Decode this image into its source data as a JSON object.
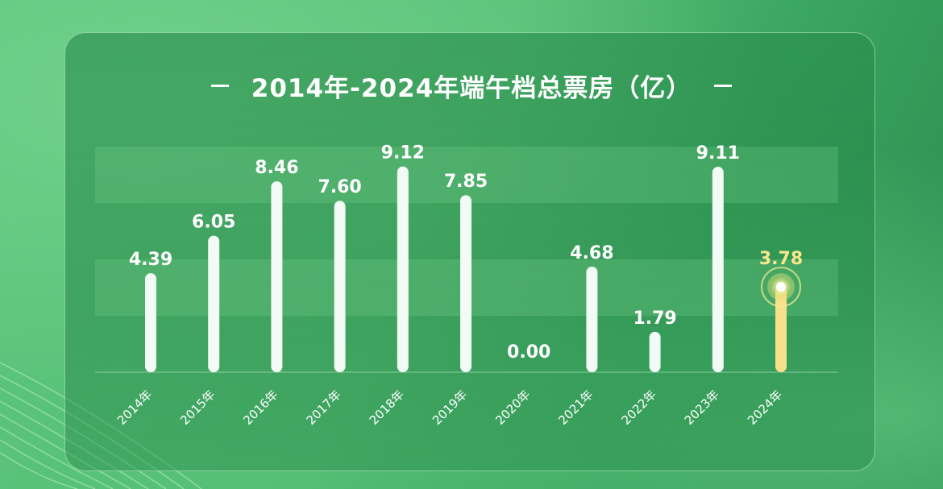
{
  "chart_data": {
    "type": "bar",
    "title": "2014年-2024年端午档总票房（亿）",
    "categories": [
      "2014年",
      "2015年",
      "2016年",
      "2017年",
      "2018年",
      "2019年",
      "2020年",
      "2021年",
      "2022年",
      "2023年",
      "2024年"
    ],
    "values": [
      4.39,
      6.05,
      8.46,
      7.6,
      9.12,
      7.85,
      0.0,
      4.68,
      1.79,
      9.11,
      3.78
    ],
    "value_labels": [
      "4.39",
      "6.05",
      "8.46",
      "7.60",
      "9.12",
      "7.85",
      "0.00",
      "4.68",
      "1.79",
      "9.11",
      "3.78"
    ],
    "highlight_index": 10,
    "ylim": [
      0,
      10
    ],
    "grid": "alternating bands",
    "colors": {
      "bar": "#f2fbf5",
      "highlight_bar": "#f7e08a",
      "highlight_label": "#f9e78e",
      "label": "#ffffff"
    }
  }
}
